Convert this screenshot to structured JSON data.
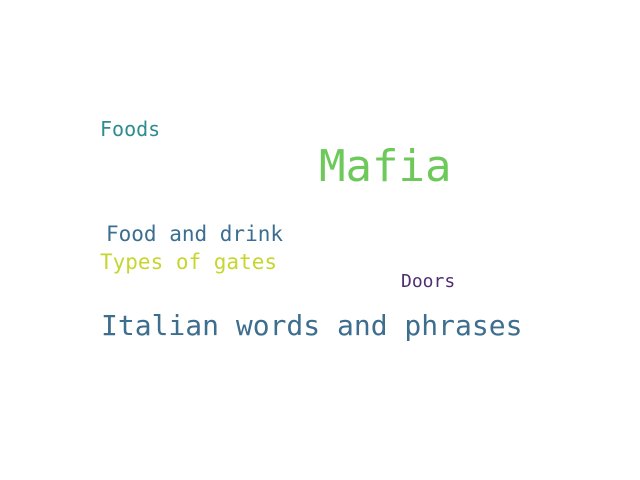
{
  "word_cloud": {
    "words": [
      {
        "id": "mafia",
        "text": "Mafia",
        "color": "#6cc95a"
      },
      {
        "id": "italian",
        "text": "Italian words and phrases",
        "color": "#3e6e8e"
      },
      {
        "id": "food",
        "text": "Food and drink",
        "color": "#3b6f90"
      },
      {
        "id": "gates",
        "text": "Types of gates",
        "color": "#c6d62e"
      },
      {
        "id": "foods",
        "text": "Foods",
        "color": "#2f8c8c"
      },
      {
        "id": "doors",
        "text": "Doors",
        "color": "#4e2f73"
      }
    ]
  }
}
